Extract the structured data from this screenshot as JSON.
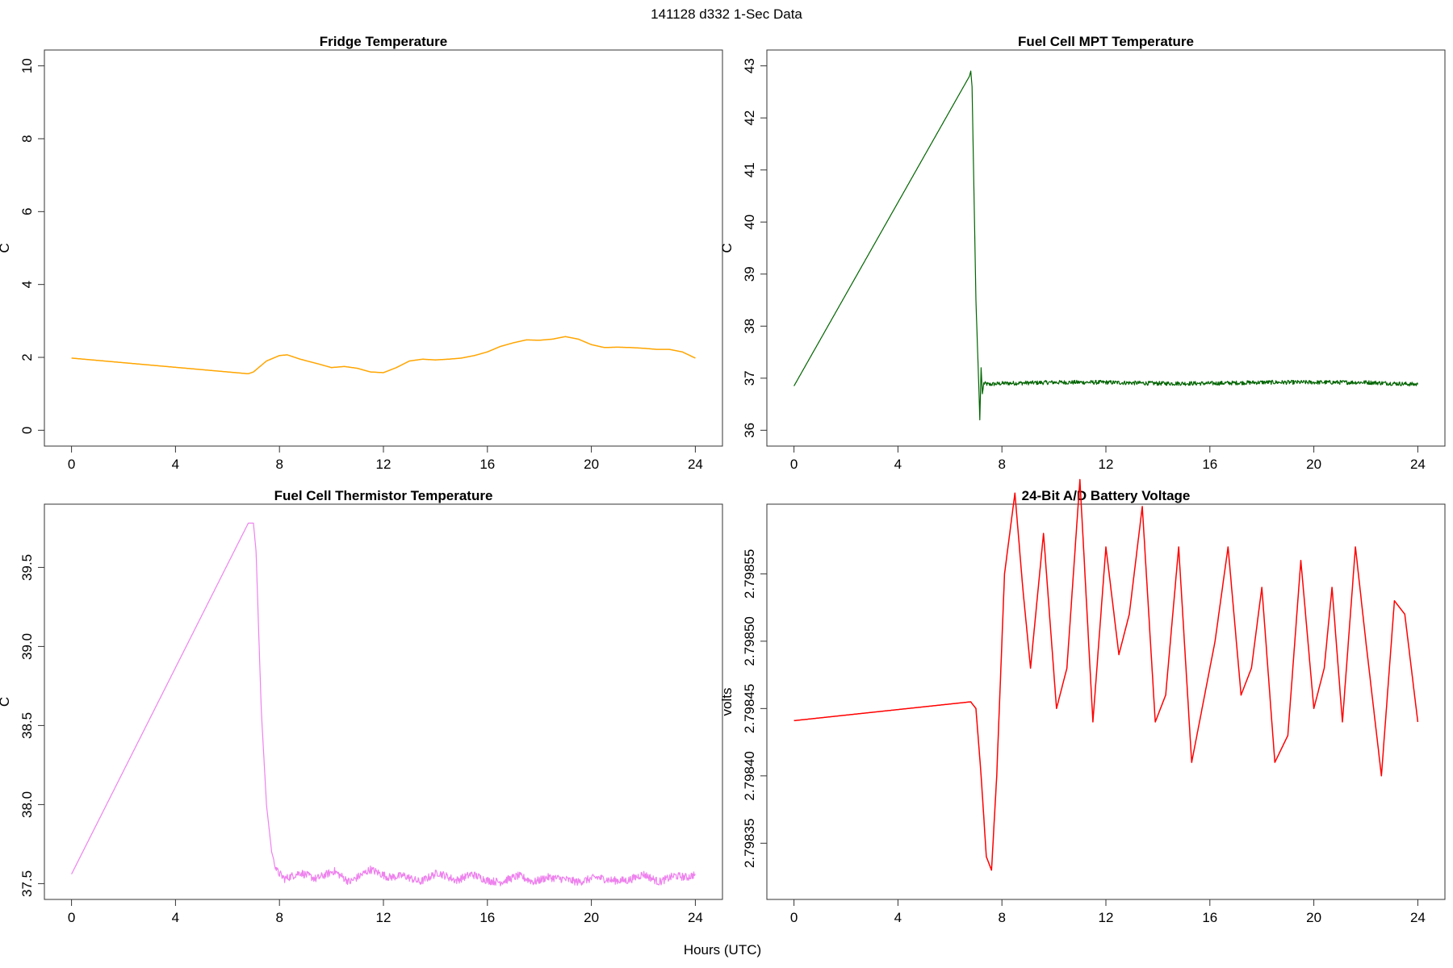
{
  "figure": {
    "title": "141128   d332   1-Sec Data",
    "xlabel": "Hours (UTC)"
  },
  "chart_data": [
    {
      "type": "line",
      "title": "Fridge Temperature",
      "xlabel": "Hours (UTC)",
      "ylabel": "C",
      "xlim": [
        0,
        24
      ],
      "ylim": [
        0,
        10
      ],
      "xticks": [
        0,
        4,
        8,
        12,
        16,
        20,
        24
      ],
      "yticks": [
        0,
        2,
        4,
        6,
        8,
        10
      ],
      "ytick_labels": [
        "0",
        "2",
        "4",
        "6",
        "8",
        "10"
      ],
      "color": "#FFA500",
      "line_width": 1.5,
      "noise": 0,
      "series": [
        {
          "name": "Fridge Temperature",
          "x": [
            0,
            6.8,
            7.0,
            7.5,
            8.0,
            8.3,
            8.8,
            9.5,
            10.0,
            10.5,
            11.0,
            11.5,
            12.0,
            12.5,
            13.0,
            13.5,
            14.0,
            14.5,
            15.0,
            15.5,
            16.0,
            16.5,
            17.0,
            17.5,
            18.0,
            18.5,
            19.0,
            19.5,
            20.0,
            20.5,
            21.0,
            21.5,
            22.0,
            22.5,
            23.0,
            23.5,
            24.0
          ],
          "y": [
            1.98,
            1.55,
            1.6,
            1.9,
            2.05,
            2.07,
            1.95,
            1.82,
            1.72,
            1.75,
            1.7,
            1.6,
            1.58,
            1.72,
            1.9,
            1.95,
            1.93,
            1.95,
            1.98,
            2.05,
            2.15,
            2.3,
            2.4,
            2.48,
            2.47,
            2.5,
            2.57,
            2.5,
            2.35,
            2.27,
            2.28,
            2.27,
            2.25,
            2.22,
            2.22,
            2.15,
            1.98
          ]
        }
      ]
    },
    {
      "type": "line",
      "title": "Fuel Cell MPT Temperature",
      "xlabel": "Hours (UTC)",
      "ylabel": "C",
      "xlim": [
        0,
        24
      ],
      "ylim": [
        36,
        43
      ],
      "xticks": [
        0,
        4,
        8,
        12,
        16,
        20,
        24
      ],
      "yticks": [
        36,
        37,
        38,
        39,
        40,
        41,
        42,
        43
      ],
      "ytick_labels": [
        "36",
        "37",
        "38",
        "39",
        "40",
        "41",
        "42",
        "43"
      ],
      "color": "#006400",
      "line_width": 1.2,
      "noise": 0.04,
      "noise_from": 7.3,
      "series": [
        {
          "name": "Fuel Cell MPT Temperature",
          "x": [
            0,
            6.75,
            6.8,
            6.85,
            7.0,
            7.1,
            7.15,
            7.2,
            7.25,
            7.3,
            7.5,
            8.0,
            10.0,
            12.0,
            14.0,
            16.0,
            18.0,
            20.0,
            22.0,
            24.0
          ],
          "y": [
            36.85,
            42.8,
            42.9,
            42.6,
            38.5,
            37.0,
            36.2,
            37.2,
            36.7,
            36.9,
            36.88,
            36.9,
            36.92,
            36.92,
            36.9,
            36.9,
            36.92,
            36.92,
            36.92,
            36.88
          ]
        }
      ]
    },
    {
      "type": "line",
      "title": "Fuel Cell Thermistor Temperature",
      "xlabel": "Hours (UTC)",
      "ylabel": "C",
      "xlim": [
        0,
        24
      ],
      "ylim": [
        37.5,
        39.8
      ],
      "xticks": [
        0,
        4,
        8,
        12,
        16,
        20,
        24
      ],
      "yticks": [
        37.5,
        38.0,
        38.5,
        39.0,
        39.5
      ],
      "ytick_labels": [
        "37.5",
        "38.0",
        "38.5",
        "39.0",
        "39.5"
      ],
      "color": "#EE82EE",
      "line_width": 1.2,
      "noise": 0.025,
      "noise_from": 7.8,
      "series": [
        {
          "name": "Fuel Cell Thermistor Temperature",
          "x": [
            0,
            6.8,
            7.0,
            7.1,
            7.3,
            7.5,
            7.7,
            7.9,
            8.2,
            8.8,
            9.4,
            10.1,
            10.7,
            11.5,
            12.2,
            12.8,
            13.4,
            14.1,
            14.8,
            15.4,
            16.0,
            16.5,
            17.2,
            17.8,
            18.3,
            18.9,
            19.5,
            20.2,
            20.8,
            21.4,
            22.0,
            22.6,
            23.2,
            23.7,
            24.0
          ],
          "y": [
            37.56,
            39.78,
            39.78,
            39.6,
            38.6,
            38.0,
            37.7,
            37.58,
            37.53,
            37.57,
            37.53,
            37.58,
            37.51,
            37.59,
            37.54,
            37.55,
            37.51,
            37.57,
            37.52,
            37.56,
            37.52,
            37.51,
            37.55,
            37.51,
            37.54,
            37.53,
            37.51,
            37.54,
            37.52,
            37.52,
            37.56,
            37.51,
            37.55,
            37.54,
            37.56
          ]
        }
      ]
    },
    {
      "type": "line",
      "title": "24-Bit A/D Battery Voltage",
      "xlabel": "Hours (UTC)",
      "ylabel": "volts",
      "xlim": [
        0,
        24
      ],
      "ylim": [
        2.79832,
        2.79859
      ],
      "xticks": [
        0,
        4,
        8,
        12,
        16,
        20,
        24
      ],
      "yticks": [
        2.79835,
        2.7984,
        2.79845,
        2.7985,
        2.79855
      ],
      "ytick_labels": [
        "2.79835",
        "2.79840",
        "2.79845",
        "2.79850",
        "2.79855"
      ],
      "color": "#FF0000",
      "line_width": 1.5,
      "noise": 0,
      "series": [
        {
          "name": "24-Bit A/D Battery Voltage",
          "x": [
            0,
            6.8,
            7.0,
            7.2,
            7.4,
            7.6,
            7.8,
            8.1,
            8.5,
            8.8,
            9.1,
            9.6,
            10.1,
            10.5,
            11.0,
            11.5,
            12.0,
            12.5,
            12.9,
            13.4,
            13.9,
            14.3,
            14.8,
            15.3,
            15.7,
            16.2,
            16.7,
            17.2,
            17.6,
            18.0,
            18.5,
            19.0,
            19.5,
            20.0,
            20.4,
            20.7,
            21.1,
            21.6,
            22.0,
            22.6,
            23.1,
            23.5,
            24.0
          ],
          "y": [
            2.798441,
            2.798455,
            2.79845,
            2.7984,
            2.79834,
            2.79833,
            2.7984,
            2.79855,
            2.79861,
            2.79854,
            2.79848,
            2.79858,
            2.79845,
            2.79848,
            2.79862,
            2.79844,
            2.79857,
            2.79849,
            2.79852,
            2.7986,
            2.79844,
            2.79846,
            2.79857,
            2.79841,
            2.79845,
            2.7985,
            2.79857,
            2.79846,
            2.79848,
            2.79854,
            2.79841,
            2.79843,
            2.79856,
            2.79845,
            2.79848,
            2.79854,
            2.79844,
            2.79857,
            2.7985,
            2.7984,
            2.79853,
            2.79852,
            2.79844
          ]
        }
      ]
    }
  ]
}
